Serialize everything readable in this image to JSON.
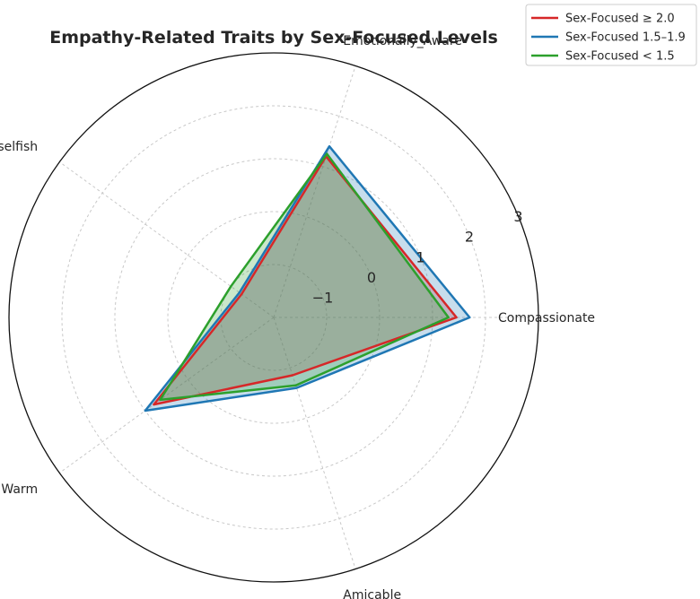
{
  "chart_data": {
    "type": "radar",
    "title": "Empathy-Related Traits by Sex-Focused Levels",
    "axes": [
      "Compassionate",
      "Emotionally_Aware",
      "Unselfish",
      "Warm",
      "Amicable"
    ],
    "r_range": [
      -2,
      3
    ],
    "r_ticks": [
      -1,
      0,
      1,
      2,
      3
    ],
    "r_tick_labels": [
      "−1",
      "0",
      "1",
      "2",
      "3"
    ],
    "grid": true,
    "legend_position": "top-right",
    "series": [
      {
        "name": "Sex-Focused ≥ 2.0",
        "color": "#d62728",
        "values": [
          1.45,
          1.2,
          -1.25,
          0.8,
          -0.85
        ]
      },
      {
        "name": "Sex-Focused 1.5–1.9",
        "color": "#1f77b4",
        "values": [
          1.7,
          1.4,
          -1.2,
          1.0,
          -0.6
        ]
      },
      {
        "name": "Sex-Focused < 1.5",
        "color": "#2ca02c",
        "values": [
          1.3,
          1.25,
          -1.0,
          0.65,
          -0.65
        ]
      }
    ]
  }
}
